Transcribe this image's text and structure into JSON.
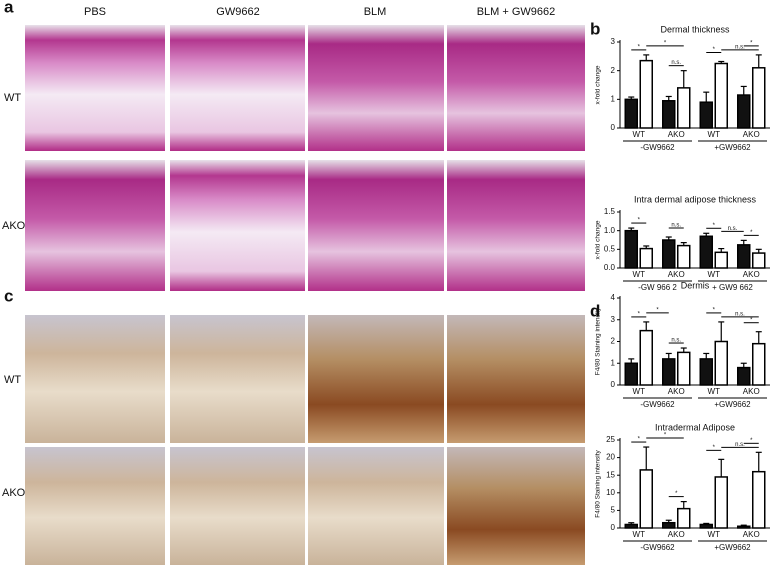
{
  "figure": {
    "panels": [
      "a",
      "b",
      "c",
      "d"
    ],
    "columns": [
      "PBS",
      "GW9662",
      "BLM",
      "BLM + GW9662"
    ],
    "rows_a": [
      "WT",
      "AKO"
    ],
    "rows_c": [
      "WT",
      "AKO"
    ]
  },
  "chart_data": [
    {
      "type": "bar",
      "title": "Dermal thickness",
      "y_label": "x-fold change",
      "categories": [
        "WT",
        "AKO",
        "WT",
        "AKO"
      ],
      "groups": [
        "-GW9662",
        "+GW9662"
      ],
      "series": [
        {
          "color": "#111111",
          "values": [
            1.0,
            0.95,
            0.9,
            1.15
          ],
          "errors": [
            0.08,
            0.15,
            0.35,
            0.3
          ]
        },
        {
          "color": "#ffffff",
          "values": [
            2.35,
            1.4,
            2.25,
            2.1
          ],
          "errors": [
            0.2,
            0.6,
            0.07,
            0.45
          ]
        }
      ],
      "ylim": [
        0,
        3
      ],
      "yticks": [
        0,
        1,
        2,
        3
      ],
      "annotations": [
        {
          "text": "*",
          "from": [
            0,
            0
          ],
          "to": [
            1,
            0
          ]
        },
        {
          "text": "*",
          "from": [
            1,
            0
          ],
          "to": [
            1,
            1
          ]
        },
        {
          "text": "n.s.",
          "from": [
            0,
            1
          ],
          "to": [
            1,
            1
          ]
        },
        {
          "text": "*",
          "from": [
            0,
            2
          ],
          "to": [
            1,
            2
          ]
        },
        {
          "text": "n.s.",
          "from": [
            1,
            2
          ],
          "to": [
            1,
            3
          ]
        },
        {
          "text": "*",
          "from": [
            0,
            3
          ],
          "to": [
            1,
            3
          ]
        }
      ]
    },
    {
      "type": "bar",
      "title": "Intra dermal adipose thickness",
      "y_label": "x-fold change",
      "categories": [
        "WT",
        "AKO",
        "WT",
        "AKO"
      ],
      "groups": [
        "-GW 966 2",
        "+ GW9 662"
      ],
      "series": [
        {
          "color": "#111111",
          "values": [
            1.0,
            0.75,
            0.85,
            0.62
          ],
          "errors": [
            0.07,
            0.08,
            0.08,
            0.12
          ]
        },
        {
          "color": "#ffffff",
          "values": [
            0.52,
            0.6,
            0.42,
            0.4
          ],
          "errors": [
            0.07,
            0.08,
            0.1,
            0.1
          ]
        }
      ],
      "ylim": [
        0,
        1.5
      ],
      "yticks": [
        {
          "value": 0,
          "label": "0.0"
        },
        0.5,
        {
          "value": 1,
          "label": "1.0"
        },
        1.5
      ],
      "annotations": [
        {
          "text": "*",
          "from": [
            0,
            0
          ],
          "to": [
            1,
            0
          ]
        },
        {
          "text": "n.s.",
          "from": [
            0,
            1
          ],
          "to": [
            1,
            1
          ]
        },
        {
          "text": "*",
          "from": [
            0,
            2
          ],
          "to": [
            1,
            2
          ]
        },
        {
          "text": "n.s.",
          "from": [
            1,
            2
          ],
          "to": [
            0,
            3
          ]
        },
        {
          "text": "*",
          "from": [
            0,
            3
          ],
          "to": [
            1,
            3
          ]
        }
      ]
    },
    {
      "type": "bar",
      "title": "Dermis",
      "y_label": "F4/80 Staining intensity",
      "categories": [
        "WT",
        "AKO",
        "WT",
        "AKO"
      ],
      "groups": [
        "-GW9662",
        "+GW9662"
      ],
      "series": [
        {
          "color": "#111111",
          "values": [
            1.0,
            1.2,
            1.2,
            0.8
          ],
          "errors": [
            0.2,
            0.25,
            0.25,
            0.2
          ]
        },
        {
          "color": "#ffffff",
          "values": [
            2.5,
            1.5,
            2.0,
            1.9
          ],
          "errors": [
            0.4,
            0.2,
            0.9,
            0.55
          ]
        }
      ],
      "ylim": [
        0,
        4
      ],
      "yticks": [
        0,
        1,
        2,
        3,
        4
      ],
      "annotations": [
        {
          "text": "*",
          "from": [
            0,
            0
          ],
          "to": [
            1,
            0
          ]
        },
        {
          "text": "*",
          "from": [
            1,
            0
          ],
          "to": [
            0,
            1
          ]
        },
        {
          "text": "n.s.",
          "from": [
            0,
            1
          ],
          "to": [
            1,
            1
          ]
        },
        {
          "text": "*",
          "from": [
            0,
            2
          ],
          "to": [
            1,
            2
          ]
        },
        {
          "text": "n.s.",
          "from": [
            1,
            2
          ],
          "to": [
            1,
            3
          ]
        },
        {
          "text": "*",
          "from": [
            0,
            3
          ],
          "to": [
            1,
            3
          ]
        }
      ]
    },
    {
      "type": "bar",
      "title": "Intradermal Adipose",
      "y_label": "F4/80 Staining intensity",
      "categories": [
        "WT",
        "AKO",
        "WT",
        "AKO"
      ],
      "groups": [
        "-GW9662",
        "+GW9662"
      ],
      "series": [
        {
          "color": "#111111",
          "values": [
            1.0,
            1.5,
            1.0,
            0.5
          ],
          "errors": [
            0.5,
            0.7,
            0.3,
            0.3
          ]
        },
        {
          "color": "#ffffff",
          "values": [
            16.5,
            5.5,
            14.5,
            16.0
          ],
          "errors": [
            6.5,
            2.0,
            5.0,
            5.5
          ]
        }
      ],
      "ylim": [
        0,
        25
      ],
      "yticks": [
        0,
        5,
        10,
        15,
        20,
        25
      ],
      "annotations": [
        {
          "text": "*",
          "from": [
            0,
            0
          ],
          "to": [
            1,
            0
          ]
        },
        {
          "text": "*",
          "from": [
            1,
            0
          ],
          "to": [
            1,
            1
          ]
        },
        {
          "text": "*",
          "from": [
            0,
            1
          ],
          "to": [
            1,
            1
          ]
        },
        {
          "text": "*",
          "from": [
            0,
            2
          ],
          "to": [
            1,
            2
          ]
        },
        {
          "text": "n.s.",
          "from": [
            1,
            2
          ],
          "to": [
            1,
            3
          ]
        },
        {
          "text": "*",
          "from": [
            0,
            3
          ],
          "to": [
            1,
            3
          ]
        }
      ]
    }
  ]
}
